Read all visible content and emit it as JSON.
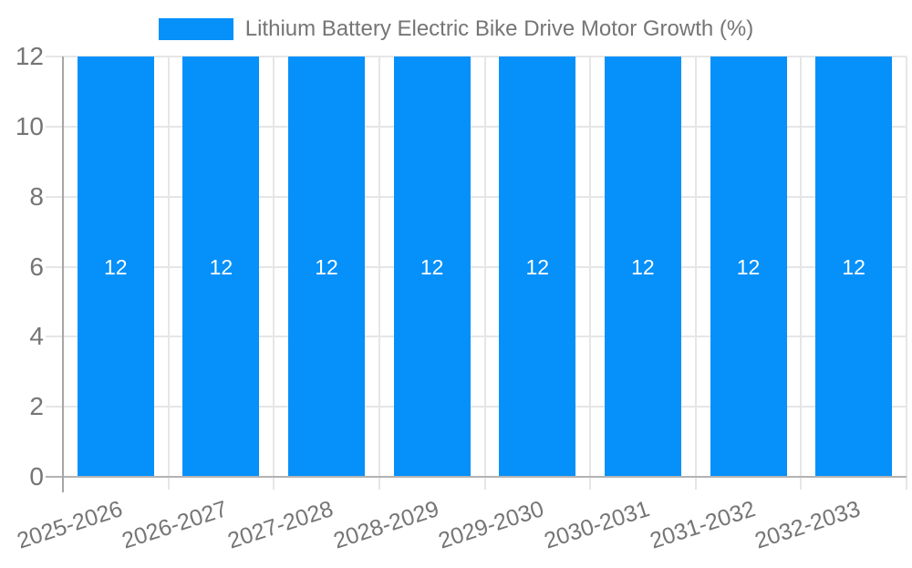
{
  "chart_data": {
    "type": "bar",
    "title": "Lithium Battery Electric Bike Drive Motor Growth (%)",
    "categories": [
      "2025-2026",
      "2026-2027",
      "2027-2028",
      "2028-2029",
      "2029-2030",
      "2030-2031",
      "2031-2032",
      "2032-2033"
    ],
    "values": [
      12,
      12,
      12,
      12,
      12,
      12,
      12,
      12
    ],
    "bar_value_labels": [
      "12",
      "12",
      "12",
      "12",
      "12",
      "12",
      "12",
      "12"
    ],
    "xlabel": "",
    "ylabel": "",
    "ylim": [
      0,
      12
    ],
    "yticks": [
      0,
      2,
      4,
      6,
      8,
      10,
      12
    ],
    "ytick_labels": [
      "0",
      "2",
      "4",
      "6",
      "8",
      "10",
      "12"
    ],
    "grid": true,
    "legend_position": "top-center",
    "colors": {
      "bar": "#0590fa",
      "gridline": "#e6e6e6",
      "axis_line": "#b3b3b3",
      "y_axis_line": "#a6a6a6",
      "tick_text": "#757575",
      "legend_text": "#757575",
      "bar_label_text": "#ffffff",
      "background": "#ffffff"
    }
  }
}
